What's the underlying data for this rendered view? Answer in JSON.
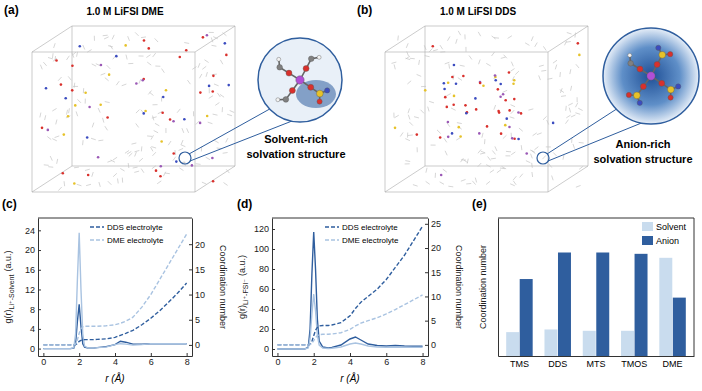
{
  "diagrams": [
    {
      "label": "(a)",
      "title": "1.0 M LiFSI DME",
      "caption": [
        "Solvent-rich",
        "solvation structure"
      ]
    },
    {
      "label": "(b)",
      "title": "1.0 M LiFSI DDS",
      "caption": [
        "Anion-rich",
        "solvation structure"
      ]
    }
  ],
  "chart_data": [
    {
      "type": "line",
      "title": "(c)",
      "xlabel": "r (Å)",
      "ylabel": "g(r)",
      "ylabel_sub": "Li⁺-Solvent",
      "ylabel_unit": "(a.u.)",
      "y2label": "Coordination number",
      "x": [
        0,
        0.5,
        1.0,
        1.5,
        1.7,
        1.8,
        1.9,
        2.0,
        2.1,
        2.2,
        2.3,
        2.5,
        2.8,
        3.0,
        3.5,
        4.0,
        4.3,
        4.6,
        5.0,
        5.5,
        6.0,
        6.5,
        7.0,
        7.5,
        8.0
      ],
      "xlim": [
        -0.3,
        8.3
      ],
      "xticks": [
        0,
        2,
        4,
        6,
        8
      ],
      "ylim": [
        -1.5,
        26.5
      ],
      "yticks": [
        0,
        4,
        8,
        12,
        16,
        20,
        24
      ],
      "y2lim": [
        -2.2,
        25.2
      ],
      "y2ticks": [
        0,
        5,
        10,
        15,
        20
      ],
      "legend": "upper center",
      "series": [
        {
          "color": "#2f5e9e",
          "line_style": "solid",
          "values": [
            0,
            0,
            0,
            0,
            0.1,
            1.2,
            5.5,
            9,
            4.5,
            1,
            0.3,
            0.1,
            0.1,
            0.2,
            0.4,
            0.8,
            1.5,
            1.3,
            0.9,
            0.9,
            1,
            1,
            1,
            1,
            1
          ]
        },
        {
          "color": "#a9c3e1",
          "line_style": "solid",
          "values": [
            0,
            0,
            0,
            0,
            0.2,
            3,
            14,
            23.5,
            12,
            3,
            0.5,
            0.1,
            0.1,
            0.2,
            0.3,
            0.8,
            1,
            0.9,
            0.7,
            0.8,
            1,
            1,
            1,
            1,
            1
          ]
        },
        {
          "name": "DDS electrolyte",
          "color": "#2f5e9e",
          "line_style": "dashed",
          "axis": "y2",
          "values": [
            0,
            0,
            0,
            0,
            0,
            0.05,
            0.3,
            0.7,
            0.9,
            1.0,
            1.05,
            1.05,
            1.05,
            1.1,
            1.2,
            1.5,
            1.9,
            2.3,
            2.9,
            4,
            5.3,
            6.8,
            8.5,
            10.3,
            12.3
          ]
        },
        {
          "name": "DME electrolyte",
          "color": "#a9c3e1",
          "line_style": "dashed",
          "axis": "y2",
          "values": [
            0,
            0,
            0,
            0,
            0,
            0.2,
            1,
            2.3,
            3.2,
            3.6,
            3.7,
            3.7,
            3.7,
            3.7,
            3.8,
            4,
            4.3,
            4.7,
            5.5,
            7.5,
            10,
            13,
            16,
            19,
            22
          ]
        }
      ]
    },
    {
      "type": "line",
      "title": "(d)",
      "xlabel": "r (Å)",
      "ylabel": "g(r)",
      "ylabel_sub": "Li⁺-FSI⁻",
      "ylabel_unit": "(a.u.)",
      "y2label": "Coordination number",
      "x": [
        0,
        0.5,
        1.0,
        1.5,
        1.7,
        1.8,
        1.9,
        2.0,
        2.1,
        2.2,
        2.3,
        2.5,
        2.8,
        3.0,
        3.5,
        4.0,
        4.3,
        4.6,
        5.0,
        5.5,
        6.0,
        6.5,
        7.0,
        7.5,
        8.0
      ],
      "xlim": [
        -0.3,
        8.3
      ],
      "xticks": [
        0,
        2,
        4,
        6,
        8
      ],
      "ylim": [
        -7,
        131
      ],
      "yticks": [
        0,
        20,
        40,
        60,
        80,
        100,
        120
      ],
      "y2lim": [
        -2.3,
        26.2
      ],
      "y2ticks": [
        0,
        5,
        10,
        15,
        20,
        25
      ],
      "legend": "upper center",
      "series": [
        {
          "color": "#2f5e9e",
          "line_style": "solid",
          "values": [
            0,
            0,
            0,
            0,
            2,
            20,
            75,
            117,
            80,
            30,
            8,
            2,
            1,
            1.5,
            4,
            10,
            12,
            9,
            5,
            3.5,
            3,
            3.5,
            3,
            2.8,
            2.8
          ]
        },
        {
          "color": "#a9c3e1",
          "line_style": "solid",
          "values": [
            0,
            0,
            0,
            0,
            1,
            10,
            35,
            55,
            38,
            14,
            4,
            1,
            0.5,
            0.8,
            2,
            5,
            6,
            5,
            3,
            2,
            1.8,
            2,
            1.8,
            1.7,
            1.7
          ]
        },
        {
          "name": "DDS electrolyte",
          "color": "#2f5e9e",
          "line_style": "dashed",
          "axis": "y2",
          "values": [
            0,
            0,
            0,
            0,
            0,
            0.1,
            0.7,
            1.9,
            3.0,
            3.6,
            3.9,
            4.0,
            4.0,
            4.1,
            4.6,
            6.0,
            7.5,
            8.8,
            10,
            11.5,
            13.5,
            16,
            18.5,
            21.5,
            24.5
          ]
        },
        {
          "name": "DME electrolyte",
          "color": "#a9c3e1",
          "line_style": "dashed",
          "axis": "y2",
          "values": [
            0,
            0,
            0,
            0,
            0,
            0.05,
            0.3,
            0.9,
            1.5,
            1.9,
            2.1,
            2.2,
            2.2,
            2.25,
            2.5,
            3.2,
            3.9,
            4.5,
            5,
            5.6,
            6.4,
            7.3,
            8.3,
            9.3,
            10.3
          ]
        }
      ]
    },
    {
      "type": "bar",
      "title": "(e)",
      "ylabel": "Coordination number",
      "categories": [
        "TMS",
        "DDS",
        "MTS",
        "TMOS",
        "DME"
      ],
      "ylim": [
        0,
        5.2
      ],
      "tick_labels": "x",
      "legend": "upper right",
      "series": [
        {
          "name": "Solvent",
          "color": "#c9dcee",
          "values": [
            0.9,
            1.0,
            0.95,
            0.95,
            3.7
          ]
        },
        {
          "name": "Anion",
          "color": "#2f5e9e",
          "values": [
            2.9,
            3.9,
            3.9,
            3.85,
            2.2
          ]
        }
      ]
    }
  ]
}
